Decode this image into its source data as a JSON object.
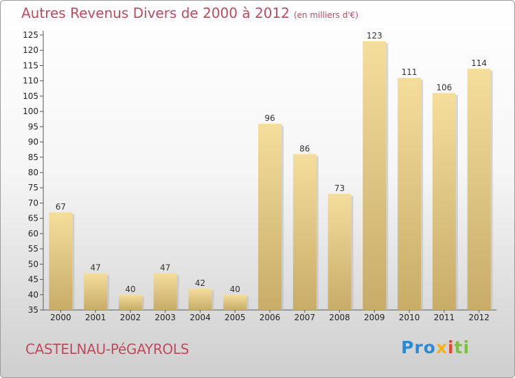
{
  "title": {
    "main": "Autres Revenus Divers de 2000 à 2012",
    "unit": "(en milliers d'€)"
  },
  "commune": "CASTELNAU-PéGAYROLS",
  "logo": {
    "text": "Proxiti",
    "part1": "Pro",
    "part2": "x",
    "part3": "i",
    "part4": "ti"
  },
  "colors": {
    "title": "#c04a5e",
    "bar_light": "#f4dc9a",
    "bar_dark": "#c9ae6a"
  },
  "chart_data": {
    "type": "bar",
    "title": "Autres Revenus Divers de 2000 à 2012",
    "subtitle": "(en milliers d'€)",
    "xlabel": "",
    "ylabel": "",
    "categories": [
      "2000",
      "2001",
      "2002",
      "2003",
      "2004",
      "2005",
      "2006",
      "2007",
      "2008",
      "2009",
      "2010",
      "2011",
      "2012"
    ],
    "values": [
      67,
      47,
      40,
      47,
      42,
      40,
      96,
      86,
      73,
      123,
      111,
      106,
      114
    ],
    "ylim": [
      35,
      125
    ],
    "yticks": [
      35,
      40,
      45,
      50,
      55,
      60,
      65,
      70,
      75,
      80,
      85,
      90,
      95,
      100,
      105,
      110,
      115,
      120,
      125
    ],
    "grid": false,
    "data_labels": true
  }
}
